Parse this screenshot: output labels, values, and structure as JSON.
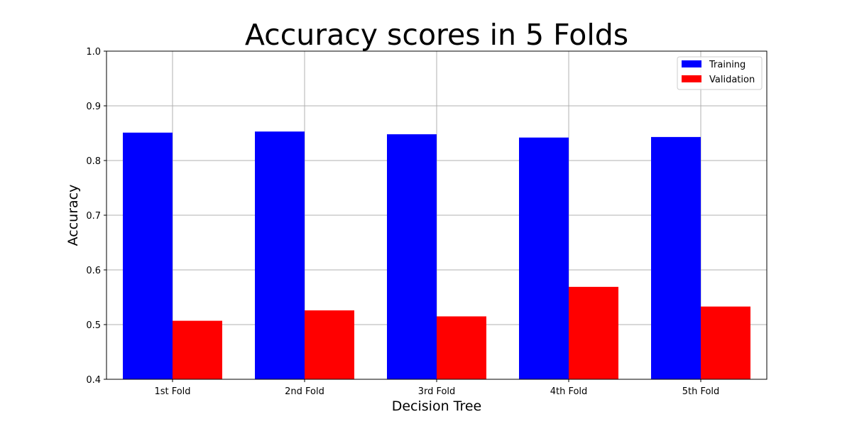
{
  "chart_data": {
    "type": "bar",
    "title": "Accuracy scores in 5 Folds",
    "xlabel": "Decision Tree",
    "ylabel": "Accuracy",
    "categories": [
      "1st Fold",
      "2nd Fold",
      "3rd Fold",
      "4th Fold",
      "5th Fold"
    ],
    "series": [
      {
        "name": "Training",
        "values": [
          0.851,
          0.853,
          0.848,
          0.842,
          0.843
        ],
        "color": "#0000ff"
      },
      {
        "name": "Validation",
        "values": [
          0.507,
          0.526,
          0.515,
          0.569,
          0.533
        ],
        "color": "#ff0000"
      }
    ],
    "ylim": [
      0.4,
      1.0
    ],
    "yticks": [
      "0.4",
      "0.5",
      "0.6",
      "0.7",
      "0.8",
      "0.9",
      "1.0"
    ],
    "grid": true,
    "legend_position": "top-right"
  }
}
